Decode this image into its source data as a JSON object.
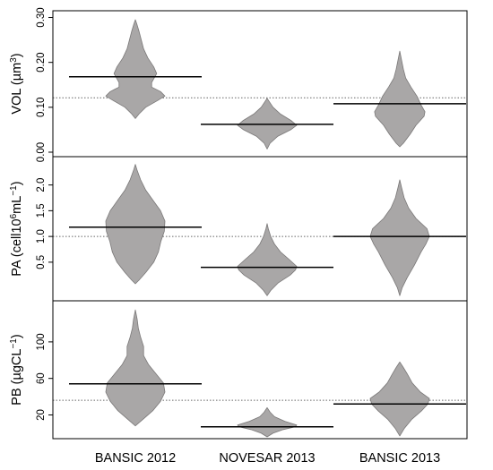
{
  "colors": {
    "violin_fill": "#a9a7a7",
    "violin_stroke": "#7a7878",
    "median_line": "#000000",
    "overall_line": "#666666",
    "frame": "#000000"
  },
  "chart_data": {
    "type": "violin",
    "categories": [
      "BANSIC 2012",
      "NOVESAR 2013",
      "BANSIC 2013"
    ],
    "panels": [
      {
        "id": "vol",
        "ylabel": {
          "base": "VOL (µm",
          "sup": "3",
          "end": ")"
        },
        "ylim": [
          -0.01,
          0.315
        ],
        "ticks": [
          0.0,
          0.1,
          0.2,
          0.3
        ],
        "tick_labels": [
          "0.00",
          "0.10",
          "0.20",
          "0.30"
        ],
        "overall": 0.121,
        "medians": [
          0.168,
          0.062,
          0.108
        ],
        "violins": [
          {
            "profile": [
              [
                0.075,
                0
              ],
              [
                0.085,
                0.12
              ],
              [
                0.1,
                0.35
              ],
              [
                0.115,
                0.75
              ],
              [
                0.125,
                1.0
              ],
              [
                0.135,
                0.85
              ],
              [
                0.145,
                0.55
              ],
              [
                0.155,
                0.55
              ],
              [
                0.175,
                0.72
              ],
              [
                0.19,
                0.62
              ],
              [
                0.21,
                0.42
              ],
              [
                0.23,
                0.28
              ],
              [
                0.25,
                0.2
              ],
              [
                0.27,
                0.12
              ],
              [
                0.285,
                0.05
              ],
              [
                0.295,
                0
              ]
            ]
          },
          {
            "profile": [
              [
                0.007,
                0
              ],
              [
                0.02,
                0.1
              ],
              [
                0.035,
                0.35
              ],
              [
                0.05,
                0.8
              ],
              [
                0.06,
                1.0
              ],
              [
                0.07,
                0.82
              ],
              [
                0.085,
                0.45
              ],
              [
                0.1,
                0.2
              ],
              [
                0.112,
                0.08
              ],
              [
                0.12,
                0
              ]
            ]
          },
          {
            "profile": [
              [
                0.012,
                0
              ],
              [
                0.02,
                0.12
              ],
              [
                0.04,
                0.35
              ],
              [
                0.06,
                0.55
              ],
              [
                0.08,
                0.82
              ],
              [
                0.09,
                0.85
              ],
              [
                0.105,
                0.72
              ],
              [
                0.125,
                0.58
              ],
              [
                0.145,
                0.38
              ],
              [
                0.165,
                0.2
              ],
              [
                0.185,
                0.12
              ],
              [
                0.205,
                0.06
              ],
              [
                0.225,
                0
              ]
            ]
          }
        ]
      },
      {
        "id": "pa",
        "ylabel": {
          "base": "PA (cell10",
          "sup": "6",
          "mid": "mL",
          "sup2": "−1",
          "end": ")"
        },
        "ylim": [
          -0.25,
          2.55
        ],
        "ticks": [
          0.5,
          1.0,
          1.5,
          2.0
        ],
        "tick_labels": [
          "0.5",
          "1.0",
          "1.5",
          "2.0"
        ],
        "overall": 1.0,
        "medians": [
          1.18,
          0.4,
          1.0
        ],
        "violins": [
          {
            "profile": [
              [
                0.08,
                0
              ],
              [
                0.15,
                0.12
              ],
              [
                0.3,
                0.35
              ],
              [
                0.5,
                0.62
              ],
              [
                0.7,
                0.78
              ],
              [
                0.9,
                0.86
              ],
              [
                1.1,
                0.98
              ],
              [
                1.3,
                1.0
              ],
              [
                1.5,
                0.85
              ],
              [
                1.7,
                0.6
              ],
              [
                1.9,
                0.35
              ],
              [
                2.1,
                0.18
              ],
              [
                2.3,
                0.05
              ],
              [
                2.4,
                0
              ]
            ]
          },
          {
            "profile": [
              [
                -0.15,
                0
              ],
              [
                -0.05,
                0.12
              ],
              [
                0.1,
                0.38
              ],
              [
                0.25,
                0.78
              ],
              [
                0.35,
                0.96
              ],
              [
                0.42,
                1.0
              ],
              [
                0.55,
                0.75
              ],
              [
                0.7,
                0.45
              ],
              [
                0.85,
                0.25
              ],
              [
                1.0,
                0.12
              ],
              [
                1.15,
                0.04
              ],
              [
                1.25,
                0
              ]
            ]
          },
          {
            "profile": [
              [
                -0.15,
                0
              ],
              [
                0.0,
                0.08
              ],
              [
                0.2,
                0.25
              ],
              [
                0.45,
                0.5
              ],
              [
                0.7,
                0.72
              ],
              [
                0.85,
                0.88
              ],
              [
                1.0,
                1.0
              ],
              [
                1.15,
                0.92
              ],
              [
                1.35,
                0.55
              ],
              [
                1.55,
                0.3
              ],
              [
                1.75,
                0.15
              ],
              [
                1.95,
                0.06
              ],
              [
                2.1,
                0
              ]
            ]
          }
        ]
      },
      {
        "id": "pb",
        "ylabel": {
          "base": "PB (µgCL",
          "sup": "−1",
          "end": ")"
        },
        "ylim": [
          -6,
          145
        ],
        "ticks": [
          20,
          60,
          100
        ],
        "tick_labels": [
          "20",
          "60",
          "100"
        ],
        "overall": 36,
        "medians": [
          54,
          7,
          32
        ],
        "violins": [
          {
            "profile": [
              [
                8,
                0
              ],
              [
                15,
                0.25
              ],
              [
                25,
                0.6
              ],
              [
                35,
                0.85
              ],
              [
                45,
                1.0
              ],
              [
                55,
                0.95
              ],
              [
                65,
                0.7
              ],
              [
                75,
                0.45
              ],
              [
                85,
                0.28
              ],
              [
                95,
                0.28
              ],
              [
                105,
                0.18
              ],
              [
                115,
                0.1
              ],
              [
                125,
                0.06
              ],
              [
                135,
                0
              ]
            ]
          },
          {
            "profile": [
              [
                -4,
                0
              ],
              [
                0,
                0.2
              ],
              [
                4,
                0.55
              ],
              [
                7,
                0.95
              ],
              [
                9,
                1.0
              ],
              [
                13,
                0.6
              ],
              [
                18,
                0.25
              ],
              [
                23,
                0.1
              ],
              [
                28,
                0
              ]
            ]
          },
          {
            "profile": [
              [
                -3,
                0
              ],
              [
                5,
                0.15
              ],
              [
                15,
                0.4
              ],
              [
                25,
                0.75
              ],
              [
                32,
                0.95
              ],
              [
                38,
                1.0
              ],
              [
                45,
                0.7
              ],
              [
                55,
                0.42
              ],
              [
                65,
                0.25
              ],
              [
                72,
                0.12
              ],
              [
                78,
                0
              ]
            ]
          }
        ]
      }
    ]
  }
}
